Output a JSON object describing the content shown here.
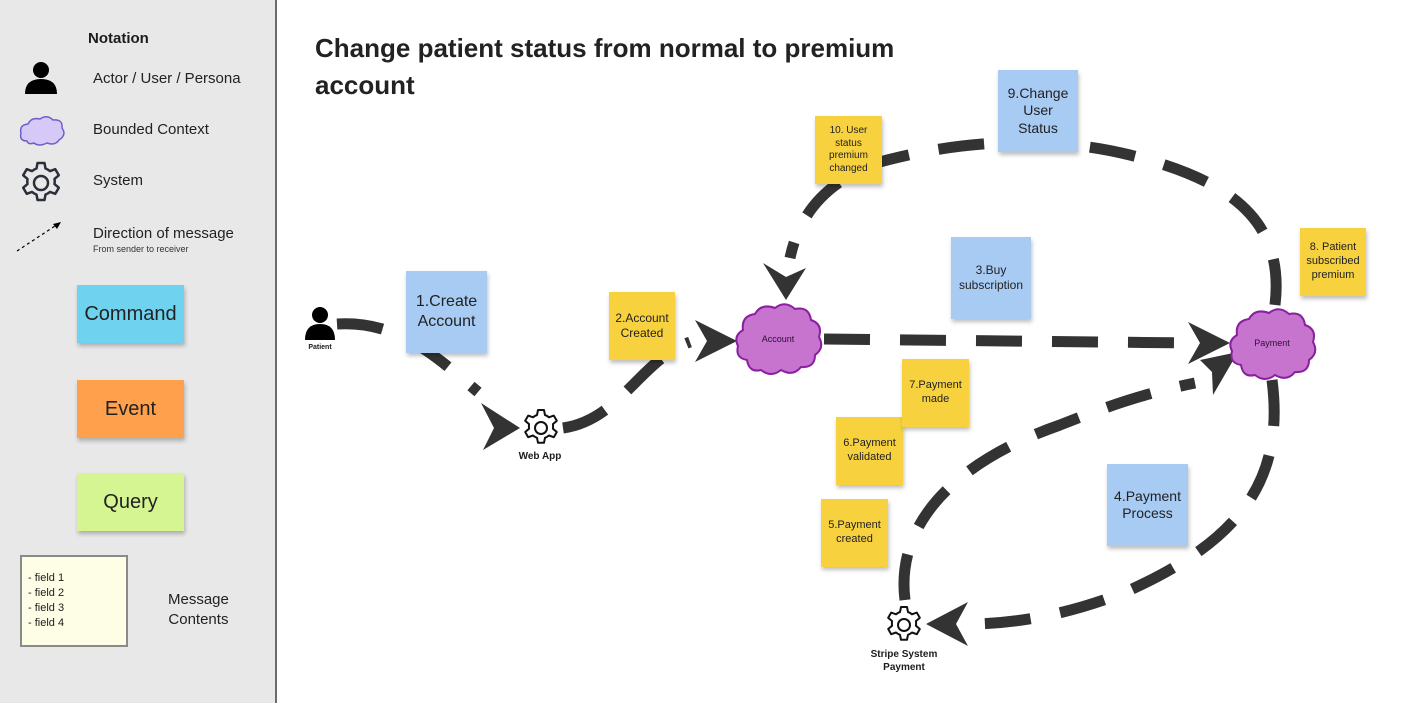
{
  "title": "Change patient status from normal to premium account",
  "legend": {
    "heading": "Notation",
    "actor": "Actor / User / Persona",
    "bounded_context": "Bounded Context",
    "system": "System",
    "direction": "Direction of message",
    "direction_sub": "From sender to receiver",
    "command": "Command",
    "event": "Event",
    "query": "Query",
    "fields": [
      "- field 1",
      "- field 2",
      "- field 3",
      "- field 4"
    ],
    "message_contents": "Message\nContents"
  },
  "nodes": {
    "patient": "Patient",
    "web_app": "Web App",
    "account": "Account",
    "payment": "Payment",
    "stripe": "Stripe System\nPayment"
  },
  "stickies": {
    "s1": "1.Create Account",
    "s2": "2.Account Created",
    "s3": "3.Buy subscription",
    "s4": "4.Payment Process",
    "s5": "5.Payment created",
    "s6": "6.Payment validated",
    "s7": "7.Payment made",
    "s8": "8. Patient subscribed premium",
    "s9": "9.Change User Status",
    "s10": "10. User status premium changed"
  },
  "colors": {
    "command": "#a7cbf3",
    "event": "#f7d23e",
    "legend_command": "#6fd3ef",
    "legend_event": "#ffa04c",
    "legend_query": "#d5f492",
    "bounded_context": "#c774cf",
    "arrow": "#333333"
  }
}
